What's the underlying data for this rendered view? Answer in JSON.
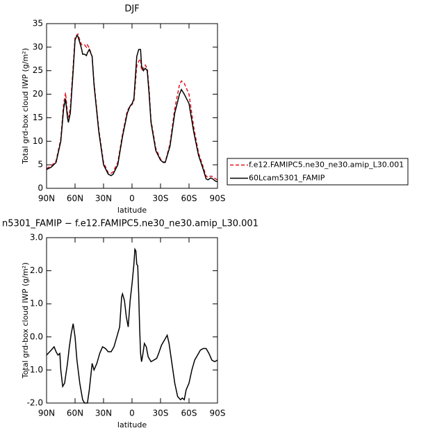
{
  "chart_data": [
    {
      "type": "line",
      "title": "DJF",
      "xlabel": "latitude",
      "ylabel": "Total grd-box cloud IWP (g/m²)",
      "x": [
        90,
        85,
        80,
        75,
        72,
        70,
        68,
        67,
        65,
        62,
        60,
        58,
        57,
        55,
        53,
        52,
        50,
        48,
        47,
        45,
        42,
        40,
        35,
        30,
        25,
        22,
        20,
        15,
        10,
        5,
        2,
        0,
        -2,
        -5,
        -7,
        -9,
        -10,
        -12,
        -13,
        -14,
        -16,
        -18,
        -20,
        -25,
        -30,
        -33,
        -35,
        -40,
        -45,
        -50,
        -52,
        -55,
        -60,
        -65,
        -70,
        -75,
        -78,
        -80,
        -83,
        -85,
        -88,
        -90
      ],
      "series": [
        {
          "name": "f.e12.FAMIPC5.ne30_ne30.amip_L30.001",
          "color": "#e0141e",
          "dashed": true,
          "values": [
            4.2,
            4.8,
            5.8,
            10.5,
            18,
            20.3,
            16,
            15,
            17,
            26,
            32,
            32.6,
            32.8,
            31.5,
            30.5,
            30.6,
            30.5,
            30,
            30.5,
            29.8,
            28,
            22.5,
            12.5,
            5.5,
            3.3,
            3.2,
            3.5,
            5.5,
            11.5,
            16.5,
            17.5,
            17.8,
            18.5,
            26,
            27,
            27.5,
            25,
            25.5,
            26,
            26.2,
            25.5,
            21,
            14.5,
            8.5,
            6.2,
            5.6,
            5.6,
            9.5,
            17,
            22,
            22.8,
            22.3,
            20,
            13,
            7.5,
            4.5,
            2.6,
            2.3,
            2.6,
            2.5,
            2,
            1.8
          ]
        },
        {
          "name": "60Lcam5301_FAMIP",
          "color": "#000000",
          "dashed": false,
          "values": [
            4,
            4.5,
            5.5,
            10,
            17,
            19,
            15,
            14,
            16,
            25,
            31.5,
            32.5,
            32.3,
            31,
            29.5,
            28.5,
            28.5,
            28.2,
            28.8,
            29.5,
            28,
            22,
            12,
            5,
            3,
            2.7,
            3,
            5,
            11,
            16,
            17.5,
            18,
            19,
            28,
            29.5,
            29.5,
            26,
            25,
            25.3,
            25.5,
            25,
            20,
            14,
            8,
            6,
            5.5,
            5.5,
            9,
            16,
            20,
            21,
            20,
            18,
            12,
            7,
            4,
            2,
            1.8,
            2.2,
            2,
            1.5,
            1.4
          ]
        }
      ],
      "xlim": [
        90,
        -90
      ],
      "xticks": [
        {
          "value": 90,
          "label": "90N"
        },
        {
          "value": 60,
          "label": "60N"
        },
        {
          "value": 30,
          "label": "30N"
        },
        {
          "value": 0,
          "label": "0"
        },
        {
          "value": -30,
          "label": "30S"
        },
        {
          "value": -60,
          "label": "60S"
        },
        {
          "value": -90,
          "label": "90S"
        }
      ],
      "ylim": [
        0,
        35
      ],
      "yticks": [
        0,
        5,
        10,
        15,
        20,
        25,
        30,
        35
      ],
      "legend": "outside-right"
    },
    {
      "type": "line",
      "title": "n5301_FAMIP − f.e12.FAMIPC5.ne30_ne30.amip_L30.001",
      "xlabel": "latitude",
      "ylabel": "Total grd-box cloud IWP (g/m²)",
      "x": [
        90,
        85,
        82,
        80,
        78,
        76,
        75,
        73,
        71,
        68,
        66,
        64,
        62,
        60,
        58,
        55,
        52,
        50,
        47,
        45,
        42,
        40,
        37,
        34,
        31,
        28,
        25,
        22,
        19,
        16,
        13,
        11,
        10,
        8,
        6,
        4,
        2,
        0,
        -2,
        -3,
        -4,
        -5,
        -6,
        -7,
        -8,
        -9,
        -10,
        -11,
        -13,
        -15,
        -17,
        -20,
        -23,
        -26,
        -28,
        -31,
        -34,
        -37,
        -39,
        -42,
        -45,
        -48,
        -51,
        -53,
        -55,
        -57,
        -60,
        -63,
        -66,
        -69,
        -72,
        -75,
        -78,
        -81,
        -84,
        -87,
        -90
      ],
      "color": "#000000",
      "values": [
        -0.55,
        -0.4,
        -0.3,
        -0.45,
        -0.55,
        -0.5,
        -1.0,
        -1.5,
        -1.4,
        -0.8,
        -0.3,
        0.1,
        0.4,
        0.0,
        -0.7,
        -1.4,
        -1.9,
        -2.0,
        -2.0,
        -1.6,
        -0.8,
        -1.0,
        -0.8,
        -0.5,
        -0.3,
        -0.35,
        -0.45,
        -0.45,
        -0.3,
        0.0,
        0.3,
        1.2,
        1.3,
        1.1,
        0.6,
        0.3,
        1.1,
        1.6,
        2.2,
        2.65,
        2.6,
        2.2,
        2.15,
        1.3,
        0.3,
        -0.5,
        -0.75,
        -0.6,
        -0.2,
        -0.3,
        -0.6,
        -0.75,
        -0.7,
        -0.65,
        -0.5,
        -0.25,
        -0.1,
        0.05,
        -0.2,
        -0.8,
        -1.4,
        -1.8,
        -1.9,
        -1.85,
        -1.9,
        -1.6,
        -1.4,
        -1.0,
        -0.7,
        -0.55,
        -0.4,
        -0.35,
        -0.35,
        -0.5,
        -0.7,
        -0.75,
        -0.7
      ],
      "xlim": [
        90,
        -90
      ],
      "xticks": [
        {
          "value": 90,
          "label": "90N"
        },
        {
          "value": 60,
          "label": "60N"
        },
        {
          "value": 30,
          "label": "30N"
        },
        {
          "value": 0,
          "label": "0"
        },
        {
          "value": -30,
          "label": "30S"
        },
        {
          "value": -60,
          "label": "60S"
        },
        {
          "value": -90,
          "label": "90S"
        }
      ],
      "ylim": [
        -2,
        3
      ],
      "yticks": [
        {
          "value": -2,
          "label": "-2.0"
        },
        {
          "value": -1,
          "label": "-1.0"
        },
        {
          "value": 0,
          "label": "0.0"
        },
        {
          "value": 1,
          "label": "1.0"
        },
        {
          "value": 2,
          "label": "2.0"
        },
        {
          "value": 3,
          "label": "3.0"
        }
      ]
    }
  ]
}
